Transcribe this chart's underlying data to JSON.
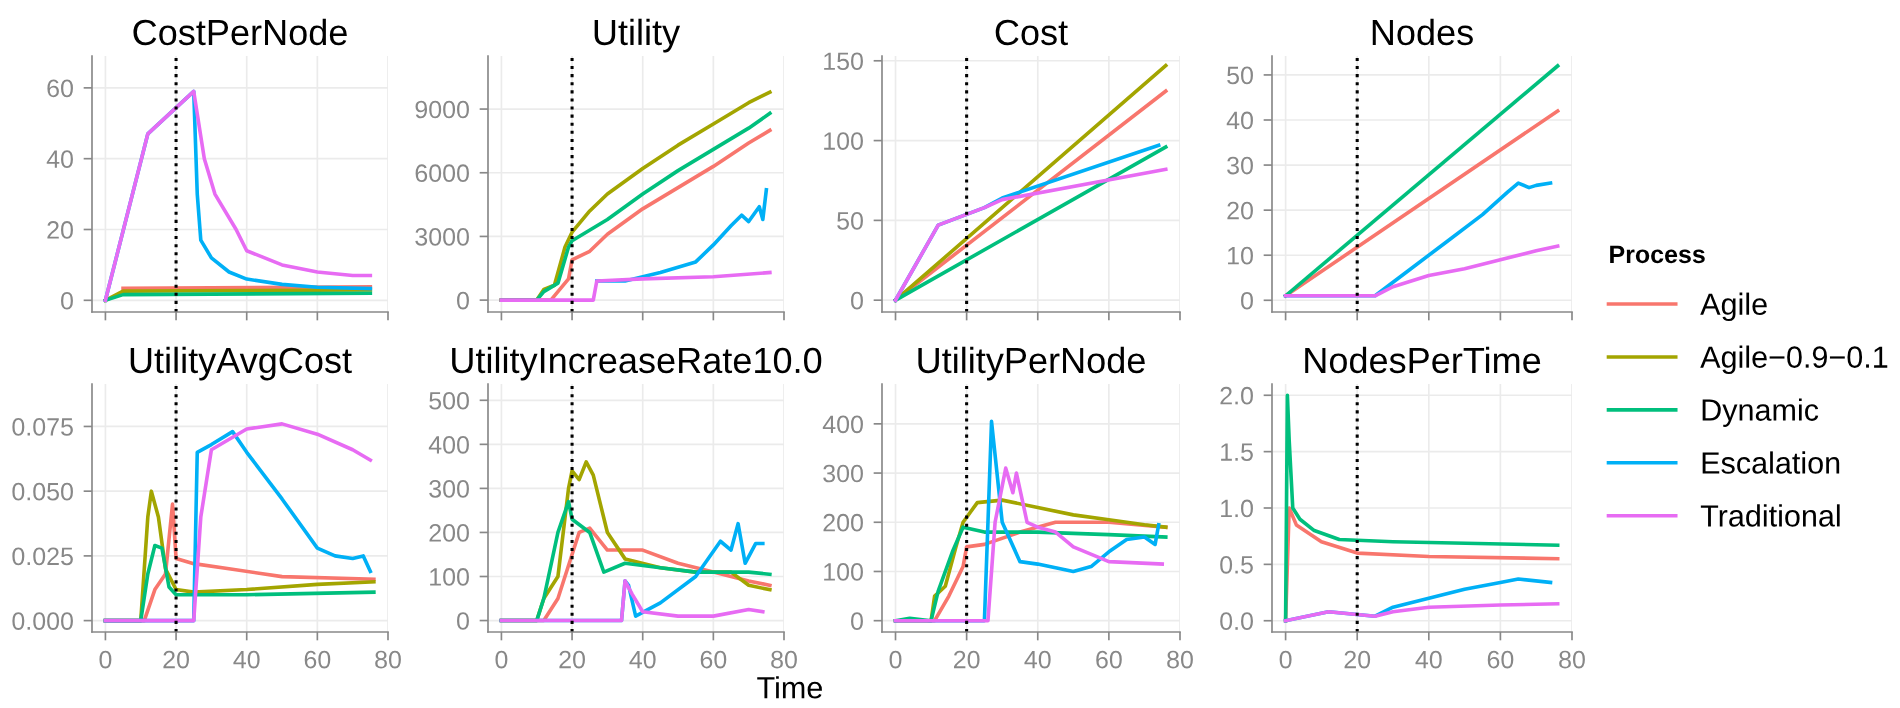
{
  "chart_data": [
    {
      "type": "line",
      "title": "CostPerNode",
      "xlim": [
        -3.8,
        80
      ],
      "xticks": [
        0,
        20,
        40,
        60,
        80
      ],
      "ylim": [
        -3.3,
        69
      ],
      "yticks": [
        0,
        20,
        40,
        60
      ],
      "grid": true,
      "tick_labels": "y",
      "ref_lines": [
        {
          "axis": "x",
          "value": 20,
          "color": "#000000",
          "line_style": "dotted"
        }
      ],
      "series": [
        {
          "color": "#f8766d",
          "x": [
            5,
            75
          ],
          "values": [
            3.4,
            3.8
          ]
        },
        {
          "color": "#a3a500",
          "x": [
            0,
            5,
            75
          ],
          "values": [
            0,
            2.6,
            2.9
          ]
        },
        {
          "color": "#00bf7d",
          "x": [
            0,
            5,
            75
          ],
          "values": [
            0,
            1.6,
            2
          ]
        },
        {
          "color": "#00b0f6",
          "x": [
            0,
            12,
            25,
            26,
            27,
            30,
            35,
            40,
            50,
            60,
            75
          ],
          "values": [
            0,
            47,
            59,
            30,
            17,
            12,
            8,
            6,
            4.5,
            3.7,
            3.3
          ]
        },
        {
          "color": "#e76bf3",
          "x": [
            0,
            12,
            25,
            28,
            31,
            37,
            40,
            50,
            60,
            70,
            75
          ],
          "values": [
            0,
            47,
            59,
            40,
            30,
            20,
            14,
            10,
            8,
            7,
            7
          ]
        }
      ]
    },
    {
      "type": "line",
      "title": "Utility",
      "xlim": [
        -3.8,
        80
      ],
      "xticks": [
        0,
        20,
        40,
        60,
        80
      ],
      "ylim": [
        -560,
        11500
      ],
      "yticks": [
        0,
        3000,
        6000,
        9000
      ],
      "grid": true,
      "tick_labels": "y",
      "ref_lines": [
        {
          "axis": "x",
          "value": 20,
          "color": "#000000",
          "line_style": "dotted"
        }
      ],
      "series": [
        {
          "color": "#f8766d",
          "x": [
            0,
            14,
            19,
            20,
            25,
            30,
            40,
            50,
            60,
            70,
            76
          ],
          "values": [
            0,
            0,
            1000,
            1900,
            2300,
            3100,
            4300,
            5300,
            6300,
            7400,
            8000
          ]
        },
        {
          "color": "#a3a500",
          "x": [
            0,
            10,
            12,
            15,
            18,
            20,
            25,
            30,
            40,
            50,
            60,
            70,
            76
          ],
          "values": [
            0,
            0,
            500,
            700,
            2500,
            3200,
            4200,
            5000,
            6200,
            7300,
            8300,
            9300,
            9800
          ]
        },
        {
          "color": "#00bf7d",
          "x": [
            0,
            10,
            12,
            16,
            19,
            20,
            30,
            40,
            50,
            60,
            70,
            76
          ],
          "values": [
            0,
            0,
            400,
            800,
            2500,
            2800,
            3800,
            5000,
            6100,
            7100,
            8100,
            8800
          ]
        },
        {
          "color": "#00b0f6",
          "x": [
            27,
            35,
            45,
            55,
            60,
            65,
            68,
            70,
            73,
            74,
            75
          ],
          "values": [
            900,
            900,
            1300,
            1800,
            2600,
            3500,
            4000,
            3700,
            4400,
            3800,
            5200
          ]
        },
        {
          "color": "#e76bf3",
          "x": [
            0,
            26,
            27,
            40,
            60,
            76
          ],
          "values": [
            0,
            0,
            900,
            1000,
            1100,
            1300
          ]
        }
      ]
    },
    {
      "type": "line",
      "title": "Cost",
      "xlim": [
        -3.8,
        80
      ],
      "xticks": [
        0,
        20,
        40,
        60,
        80
      ],
      "ylim": [
        -7.4,
        153
      ],
      "yticks": [
        0,
        50,
        100,
        150
      ],
      "grid": true,
      "tick_labels": "y",
      "ref_lines": [
        {
          "axis": "x",
          "value": 20,
          "color": "#000000",
          "line_style": "dotted"
        }
      ],
      "series": [
        {
          "color": "#f8766d",
          "x": [
            0,
            76
          ],
          "values": [
            0,
            131
          ]
        },
        {
          "color": "#a3a500",
          "x": [
            0,
            76
          ],
          "values": [
            0,
            147
          ]
        },
        {
          "color": "#00bf7d",
          "x": [
            0,
            76
          ],
          "values": [
            0,
            96
          ]
        },
        {
          "color": "#00b0f6",
          "x": [
            0,
            12,
            25,
            30,
            74
          ],
          "values": [
            0,
            47,
            58,
            64,
            97
          ]
        },
        {
          "color": "#e76bf3",
          "x": [
            0,
            12,
            25,
            30,
            76
          ],
          "values": [
            0,
            47,
            58,
            63,
            82
          ]
        }
      ]
    },
    {
      "type": "line",
      "title": "Nodes",
      "xlim": [
        -3.8,
        80
      ],
      "xticks": [
        0,
        20,
        40,
        60,
        80
      ],
      "ylim": [
        -2.6,
        54.2
      ],
      "yticks": [
        0,
        10,
        20,
        30,
        40,
        50
      ],
      "grid": true,
      "tick_labels": "y",
      "legend": "right",
      "legend_title": "Process",
      "ref_lines": [
        {
          "axis": "x",
          "value": 20,
          "color": "#000000",
          "line_style": "dotted"
        }
      ],
      "series": [
        {
          "name": "Agile",
          "color": "#f8766d",
          "x": [
            0,
            76
          ],
          "values": [
            1,
            42
          ]
        },
        {
          "name": "Agile−0.9−0.1",
          "color": "#a3a500"
        },
        {
          "name": "Dynamic",
          "color": "#00bf7d",
          "x": [
            0,
            76
          ],
          "values": [
            1,
            52
          ]
        },
        {
          "name": "Escalation",
          "color": "#00b0f6",
          "x": [
            0,
            25,
            35,
            45,
            55,
            62,
            65,
            68,
            70,
            74
          ],
          "values": [
            1,
            1,
            7,
            13,
            19,
            24,
            26,
            25,
            25.5,
            26
          ]
        },
        {
          "name": "Traditional",
          "color": "#e76bf3",
          "x": [
            0,
            25,
            30,
            40,
            50,
            60,
            70,
            76
          ],
          "values": [
            1,
            1,
            3,
            5.5,
            7,
            9,
            11,
            12
          ]
        }
      ]
    },
    {
      "type": "line",
      "title": "UtilityAvgCost",
      "xlim": [
        -3.8,
        80
      ],
      "xticks": [
        0,
        20,
        40,
        60,
        80
      ],
      "ylim": [
        -0.0044,
        0.0914
      ],
      "yticks": [
        {
          "value": 0,
          "label": "0.000"
        },
        0.025,
        {
          "value": 0.05,
          "label": "0.050"
        },
        0.075
      ],
      "grid": true,
      "ref_lines": [
        {
          "axis": "x",
          "value": 20,
          "color": "#000000",
          "line_style": "dotted"
        }
      ],
      "series": [
        {
          "color": "#f8766d",
          "x": [
            0,
            11,
            14,
            17,
            19,
            20,
            25,
            35,
            50,
            76
          ],
          "values": [
            0,
            0,
            0.012,
            0.018,
            0.045,
            0.024,
            0.022,
            0.02,
            0.017,
            0.016
          ]
        },
        {
          "color": "#a3a500",
          "x": [
            0,
            10,
            12,
            13,
            15,
            17,
            20,
            25,
            40,
            60,
            76
          ],
          "values": [
            0,
            0,
            0.04,
            0.05,
            0.04,
            0.02,
            0.012,
            0.011,
            0.012,
            0.014,
            0.015
          ]
        },
        {
          "color": "#00bf7d",
          "x": [
            0,
            10,
            12,
            14,
            16,
            18,
            20,
            40,
            76
          ],
          "values": [
            0,
            0,
            0.018,
            0.029,
            0.028,
            0.013,
            0.01,
            0.01,
            0.011
          ]
        },
        {
          "color": "#00b0f6",
          "x": [
            0,
            25,
            26,
            30,
            36,
            40,
            50,
            60,
            65,
            70,
            73,
            75
          ],
          "values": [
            0,
            0,
            0.065,
            0.068,
            0.073,
            0.065,
            0.047,
            0.028,
            0.025,
            0.024,
            0.025,
            0.019
          ]
        },
        {
          "color": "#e76bf3",
          "x": [
            0,
            25,
            27,
            30,
            40,
            50,
            60,
            70,
            75
          ],
          "values": [
            0,
            0,
            0.04,
            0.066,
            0.074,
            0.076,
            0.072,
            0.066,
            0.062
          ]
        }
      ]
    },
    {
      "type": "line",
      "title": "UtilityIncreaseRate10.0",
      "xlabel": "Time",
      "xlim": [
        -3.8,
        80
      ],
      "xticks": [
        0,
        20,
        40,
        60,
        80
      ],
      "ylim": [
        -26,
        537
      ],
      "yticks": [
        0,
        100,
        200,
        300,
        400,
        500
      ],
      "grid": true,
      "ref_lines": [
        {
          "axis": "x",
          "value": 20,
          "color": "#000000",
          "line_style": "dotted"
        }
      ],
      "series": [
        {
          "color": "#f8766d",
          "x": [
            0,
            12,
            16,
            20,
            22,
            25,
            30,
            40,
            50,
            60,
            70,
            76
          ],
          "values": [
            0,
            0,
            50,
            150,
            200,
            210,
            160,
            160,
            130,
            110,
            90,
            80
          ]
        },
        {
          "color": "#a3a500",
          "x": [
            0,
            10,
            12,
            16,
            19,
            20,
            22,
            24,
            26,
            30,
            35,
            45,
            55,
            65,
            70,
            76
          ],
          "values": [
            0,
            0,
            50,
            100,
            300,
            340,
            320,
            360,
            330,
            200,
            140,
            120,
            110,
            110,
            80,
            70
          ]
        },
        {
          "color": "#00bf7d",
          "x": [
            0,
            10,
            12,
            16,
            19,
            20,
            25,
            29,
            35,
            45,
            55,
            65,
            70,
            76
          ],
          "values": [
            0,
            0,
            50,
            200,
            270,
            230,
            200,
            110,
            130,
            120,
            110,
            110,
            110,
            105
          ]
        },
        {
          "color": "#00b0f6",
          "x": [
            0,
            34,
            35,
            36,
            38,
            45,
            55,
            62,
            65,
            67,
            69,
            72,
            74
          ],
          "values": [
            0,
            0,
            90,
            80,
            10,
            40,
            100,
            180,
            160,
            220,
            130,
            175,
            175
          ]
        },
        {
          "color": "#e76bf3",
          "x": [
            0,
            34,
            35,
            37,
            40,
            50,
            60,
            70,
            74
          ],
          "values": [
            0,
            0,
            90,
            60,
            20,
            10,
            10,
            25,
            20
          ]
        }
      ]
    },
    {
      "type": "line",
      "title": "UtilityPerNode",
      "xlim": [
        -3.8,
        80
      ],
      "xticks": [
        0,
        20,
        40,
        60,
        80
      ],
      "ylim": [
        -23,
        481
      ],
      "yticks": [
        0,
        100,
        200,
        300,
        400
      ],
      "grid": true,
      "ref_lines": [
        {
          "axis": "x",
          "value": 20,
          "color": "#000000",
          "line_style": "dotted"
        }
      ],
      "series": [
        {
          "color": "#f8766d",
          "x": [
            0,
            11,
            15,
            19,
            20,
            25,
            35,
            45,
            60,
            76
          ],
          "values": [
            0,
            0,
            50,
            110,
            150,
            155,
            180,
            200,
            200,
            190
          ]
        },
        {
          "color": "#a3a500",
          "x": [
            0,
            10,
            11,
            14,
            17,
            19,
            23,
            30,
            40,
            50,
            60,
            70,
            76
          ],
          "values": [
            0,
            0,
            50,
            70,
            150,
            200,
            240,
            245,
            230,
            215,
            205,
            195,
            190
          ]
        },
        {
          "color": "#00bf7d",
          "x": [
            0,
            4,
            10,
            12,
            16,
            19,
            25,
            40,
            60,
            76
          ],
          "values": [
            0,
            5,
            0,
            60,
            140,
            190,
            180,
            180,
            175,
            170
          ]
        },
        {
          "color": "#00b0f6",
          "x": [
            0,
            25,
            26,
            27,
            30,
            35,
            40,
            50,
            55,
            60,
            65,
            70,
            73,
            74
          ],
          "values": [
            0,
            0,
            200,
            405,
            200,
            120,
            115,
            100,
            110,
            140,
            165,
            170,
            155,
            195
          ]
        },
        {
          "color": "#e76bf3",
          "x": [
            0,
            26,
            28,
            31,
            33,
            34,
            37,
            40,
            45,
            50,
            60,
            75
          ],
          "values": [
            0,
            0,
            200,
            310,
            260,
            300,
            200,
            190,
            180,
            150,
            120,
            115
          ]
        }
      ]
    },
    {
      "type": "line",
      "title": "NodesPerTime",
      "xlim": [
        -3.8,
        80
      ],
      "xticks": [
        0,
        20,
        40,
        60,
        80
      ],
      "ylim": [
        -0.1,
        2.1
      ],
      "yticks": [
        {
          "value": 0,
          "label": "0.0"
        },
        0.5,
        {
          "value": 1,
          "label": "1.0"
        },
        1.5,
        {
          "value": 2,
          "label": "2.0"
        }
      ],
      "grid": true,
      "ref_lines": [
        {
          "axis": "x",
          "value": 20,
          "color": "#000000",
          "line_style": "dotted"
        }
      ],
      "series": [
        {
          "color": "#f8766d",
          "x": [
            0,
            1,
            3,
            10,
            20,
            40,
            76
          ],
          "values": [
            0,
            1.0,
            0.85,
            0.7,
            0.6,
            0.57,
            0.55
          ]
        },
        {
          "color": "#00bf7d",
          "x": [
            0,
            0.5,
            1,
            2,
            4,
            8,
            15,
            30,
            76
          ],
          "values": [
            0,
            2.0,
            1.6,
            1.0,
            0.9,
            0.8,
            0.72,
            0.7,
            0.67
          ]
        },
        {
          "color": "#00b0f6",
          "x": [
            0,
            12,
            25,
            30,
            40,
            50,
            60,
            65,
            74
          ],
          "values": [
            0,
            0.08,
            0.04,
            0.12,
            0.2,
            0.28,
            0.34,
            0.37,
            0.34
          ]
        },
        {
          "color": "#e76bf3",
          "x": [
            0,
            12,
            25,
            30,
            40,
            60,
            76
          ],
          "values": [
            0,
            0.08,
            0.04,
            0.08,
            0.12,
            0.14,
            0.15
          ]
        }
      ]
    }
  ]
}
